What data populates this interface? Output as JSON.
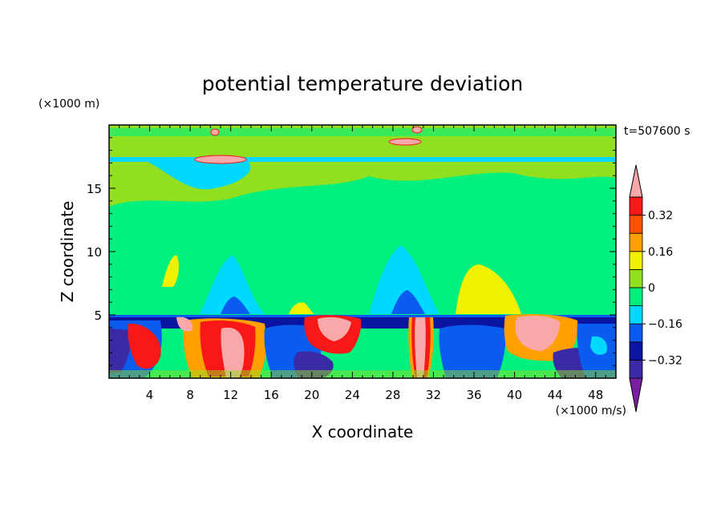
{
  "chart_data": {
    "type": "heatmap",
    "title": "potential temperature deviation",
    "xlabel": "X coordinate",
    "ylabel": "Z coordinate",
    "x_unit": "(×1000 m/s)",
    "y_unit": "(×1000 m)",
    "time_label": "t=507600 s",
    "xlim": [
      0,
      50
    ],
    "ylim": [
      0,
      20
    ],
    "x_ticks": [
      4,
      8,
      12,
      16,
      20,
      24,
      28,
      32,
      36,
      40,
      44,
      48
    ],
    "y_ticks": [
      5,
      10,
      15
    ],
    "colorbar": {
      "levels": [
        -0.4,
        -0.32,
        -0.24,
        -0.16,
        -0.08,
        0,
        0.08,
        0.16,
        0.24,
        0.32,
        0.4
      ],
      "tick_values": [
        0.32,
        0.16,
        0,
        -0.16,
        -0.32
      ],
      "tick_labels": [
        "0.32",
        "0.16",
        "0",
        "−0.16",
        "−0.32"
      ],
      "colors": [
        "#7a1fa2",
        "#3a2aa6",
        "#0a14a0",
        "#0a5cf0",
        "#00d8ff",
        "#00f080",
        "#90e020",
        "#f0f000",
        "#ffa000",
        "#ff5000",
        "#f81818",
        "#f8a8a8"
      ],
      "extend": "both"
    }
  }
}
